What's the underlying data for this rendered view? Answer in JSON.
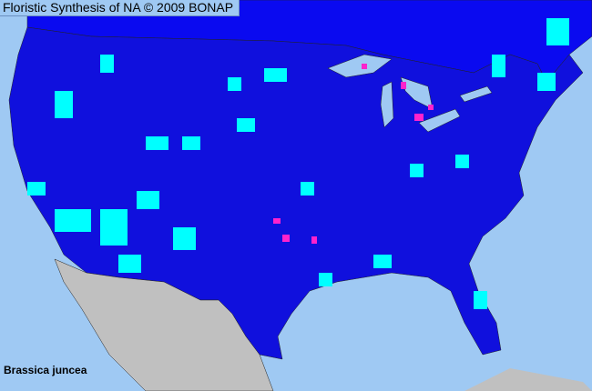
{
  "title": "Floristic Synthesis of NA © 2009 BONAP",
  "species": "Brassica juncea",
  "colors": {
    "water": "#9fc9f3",
    "present_native": "#1010dd",
    "present_county": "#00ffff",
    "noxious_or_rare": "#ff22cc",
    "outside_region": "#c0c0c0"
  }
}
